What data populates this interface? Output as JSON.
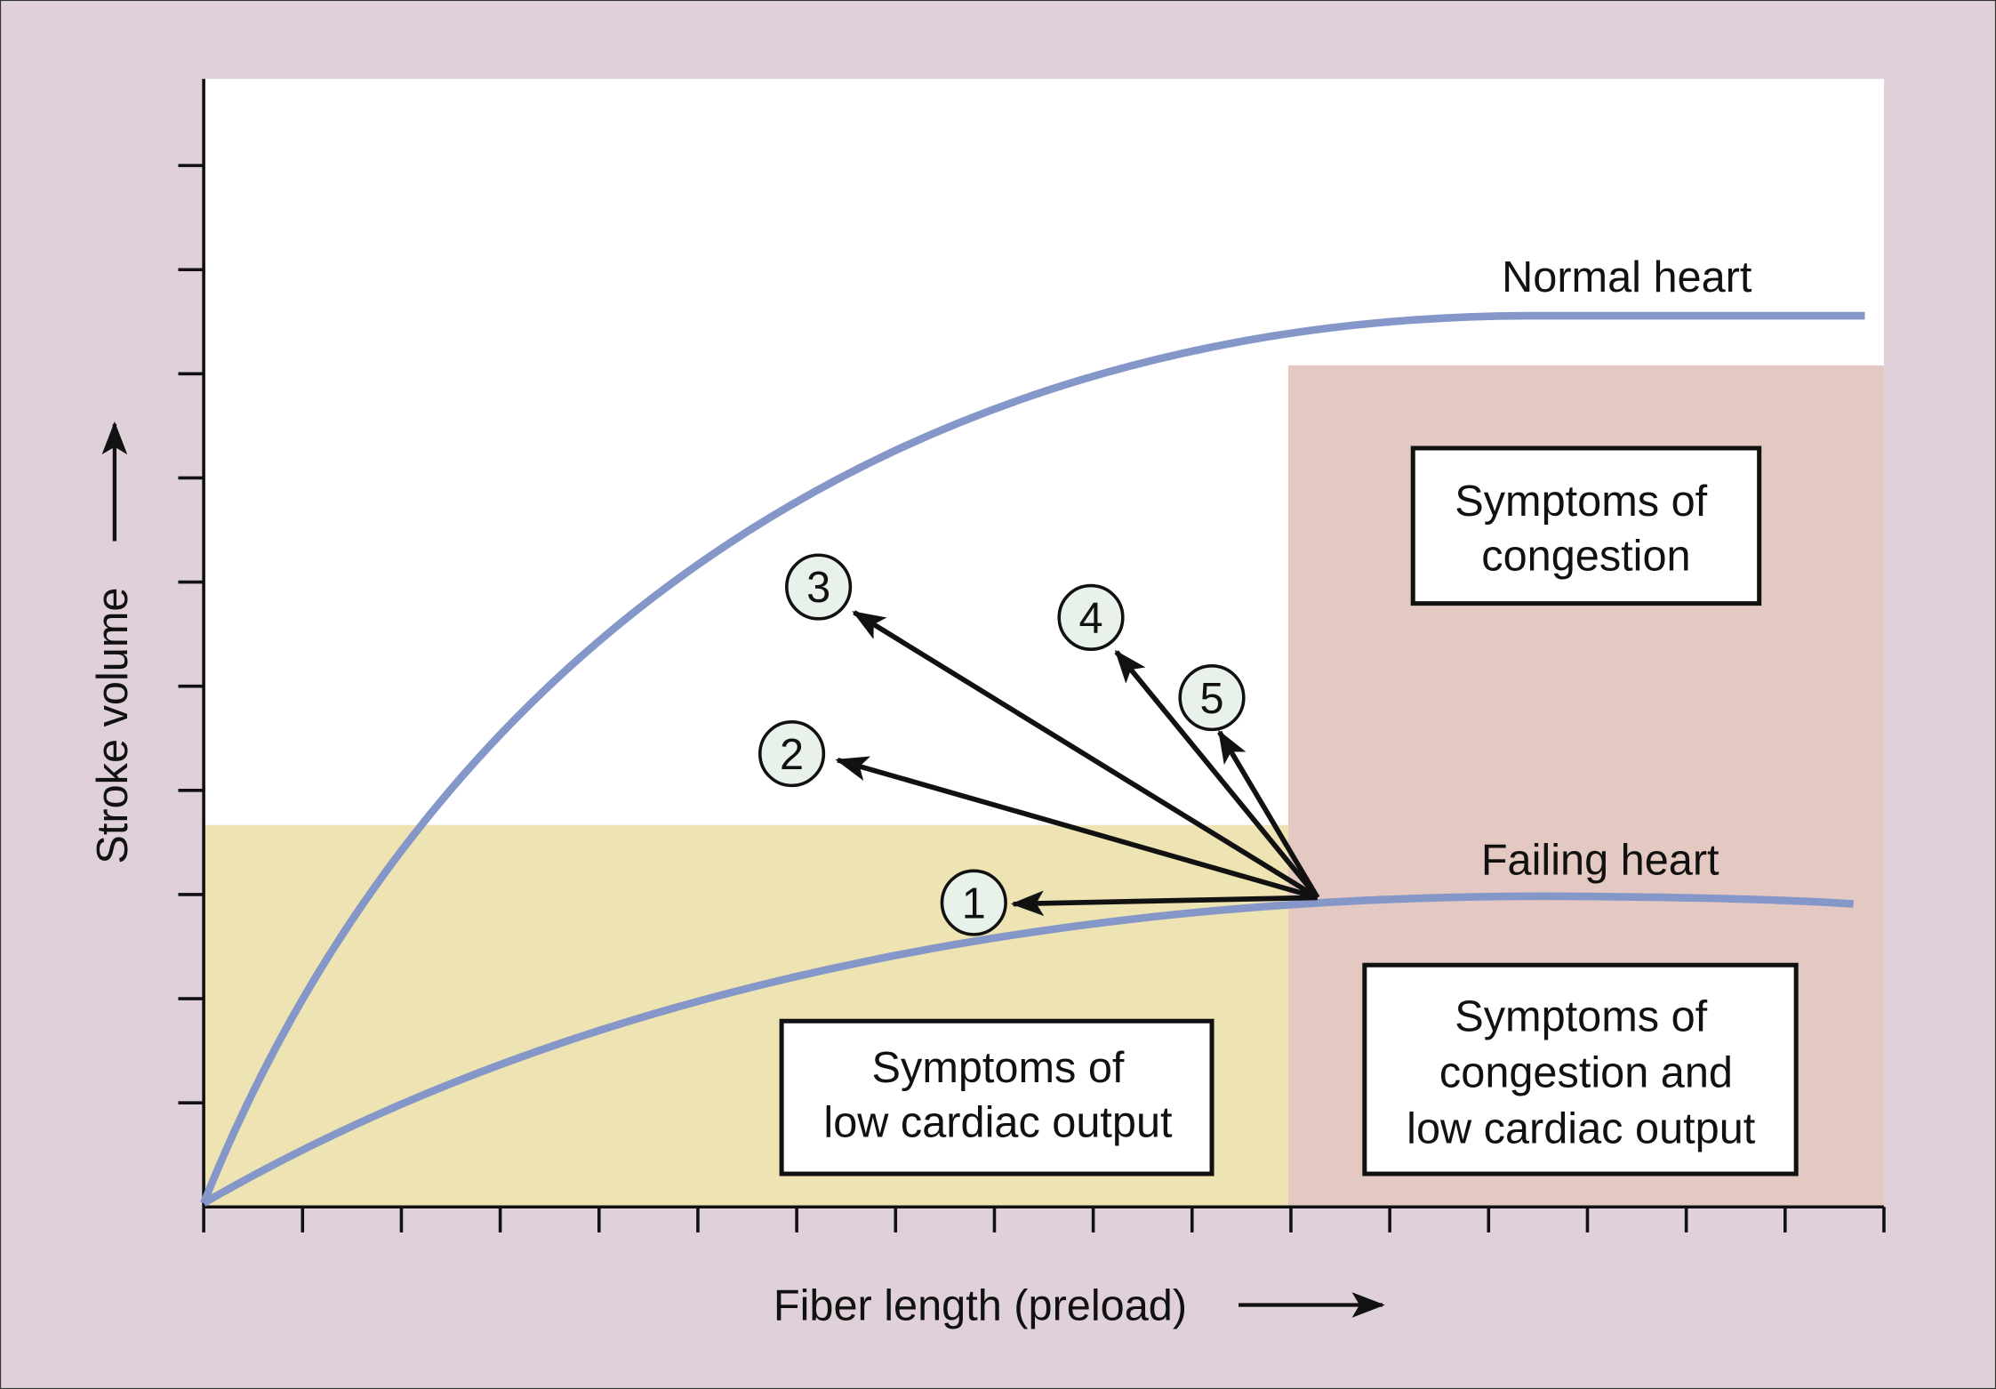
{
  "colors": {
    "background": "#dfd0da",
    "plot_area": "#ffffff",
    "low_output_region": "#ede3b3",
    "congestion_region": "#e3c9c1",
    "curve": "#8597c9",
    "arrow": "#111111",
    "marker_fill": "#e8f2ea"
  },
  "axes": {
    "y_label": "Stroke volume",
    "x_label": "Fiber length (preload)"
  },
  "curves": {
    "normal": "Normal heart",
    "failing": "Failing heart"
  },
  "regions": {
    "congestion": [
      "Symptoms of",
      "congestion"
    ],
    "low_output": [
      "Symptoms of",
      "low cardiac output"
    ],
    "both": [
      "Symptoms of",
      "congestion and",
      "low cardiac output"
    ]
  },
  "markers": [
    "1",
    "2",
    "3",
    "4",
    "5"
  ]
}
